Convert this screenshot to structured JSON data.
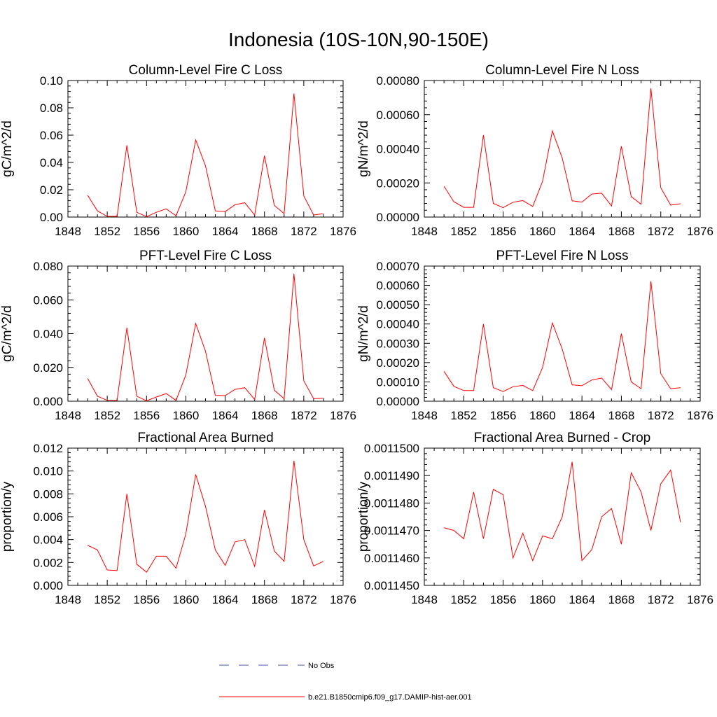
{
  "title": "Indonesia (10S-10N,90-150E)",
  "colors": {
    "model": "#ff0000",
    "obs": "#4a52a8",
    "axis": "#000000"
  },
  "legend": {
    "obs_label": "No Obs",
    "model_label": "b.e21.B1850cmip6.f09_g17.DAMIP-hist-aer.001"
  },
  "chart_data": [
    {
      "type": "line",
      "title": "Column-Level Fire C Loss",
      "ylabel": "gC/m^2/d",
      "xlim": [
        1848,
        1876
      ],
      "xticks": [
        "1848",
        "1852",
        "1856",
        "1860",
        "1864",
        "1868",
        "1872",
        "1876"
      ],
      "ylim": [
        0,
        0.1
      ],
      "yticks": [
        "0.00",
        "0.02",
        "0.04",
        "0.06",
        "0.08",
        "0.10"
      ],
      "x": [
        1850,
        1851,
        1852,
        1853,
        1854,
        1855,
        1856,
        1857,
        1858,
        1859,
        1860,
        1861,
        1862,
        1863,
        1864,
        1865,
        1866,
        1867,
        1868,
        1869,
        1870,
        1871,
        1872,
        1873,
        1874
      ],
      "series": [
        {
          "values": [
            0.016,
            0.0045,
            0.0005,
            0.0005,
            0.0525,
            0.0035,
            0.0003,
            0.0035,
            0.006,
            0.001,
            0.0185,
            0.0565,
            0.0375,
            0.0045,
            0.004,
            0.009,
            0.0105,
            0.0015,
            0.045,
            0.0085,
            0.0025,
            0.0905,
            0.0155,
            0.0015,
            0.0025
          ]
        }
      ]
    },
    {
      "type": "line",
      "title": "Column-Level Fire N Loss",
      "ylabel": "gN/m^2/d",
      "xlim": [
        1848,
        1876
      ],
      "xticks": [
        "1848",
        "1852",
        "1856",
        "1860",
        "1864",
        "1868",
        "1872",
        "1876"
      ],
      "ylim": [
        0,
        0.0008
      ],
      "yticks": [
        "0.00000",
        "0.00020",
        "0.00040",
        "0.00060",
        "0.00080"
      ],
      "x": [
        1850,
        1851,
        1852,
        1853,
        1854,
        1855,
        1856,
        1857,
        1858,
        1859,
        1860,
        1861,
        1862,
        1863,
        1864,
        1865,
        1866,
        1867,
        1868,
        1869,
        1870,
        1871,
        1872,
        1873,
        1874
      ],
      "series": [
        {
          "values": [
            0.00018,
            9e-05,
            5.7e-05,
            5.7e-05,
            0.00048,
            8e-05,
            5.5e-05,
            8.7e-05,
            9.7e-05,
            6.2e-05,
            0.00021,
            0.000505,
            0.000345,
            9.5e-05,
            8.8e-05,
            0.000135,
            0.00014,
            6.5e-05,
            0.000415,
            0.00012,
            7.5e-05,
            0.000755,
            0.000172,
            7e-05,
            7.8e-05
          ]
        }
      ]
    },
    {
      "type": "line",
      "title": "PFT-Level Fire C Loss",
      "ylabel": "gC/m^2/d",
      "xlim": [
        1848,
        1876
      ],
      "xticks": [
        "1848",
        "1852",
        "1856",
        "1860",
        "1864",
        "1868",
        "1872",
        "1876"
      ],
      "ylim": [
        0,
        0.08
      ],
      "yticks": [
        "0.000",
        "0.020",
        "0.040",
        "0.060",
        "0.080"
      ],
      "x": [
        1850,
        1851,
        1852,
        1853,
        1854,
        1855,
        1856,
        1857,
        1858,
        1859,
        1860,
        1861,
        1862,
        1863,
        1864,
        1865,
        1866,
        1867,
        1868,
        1869,
        1870,
        1871,
        1872,
        1873,
        1874
      ],
      "series": [
        {
          "values": [
            0.0135,
            0.003,
            0.0005,
            0.0005,
            0.0435,
            0.003,
            0.0002,
            0.0025,
            0.0045,
            0.0005,
            0.0155,
            0.046,
            0.0295,
            0.0035,
            0.0033,
            0.007,
            0.008,
            0.001,
            0.0375,
            0.0065,
            0.0015,
            0.0755,
            0.012,
            0.0015,
            0.0018
          ]
        }
      ]
    },
    {
      "type": "line",
      "title": "PFT-Level Fire N Loss",
      "ylabel": "gN/m^2/d",
      "xlim": [
        1848,
        1876
      ],
      "xticks": [
        "1848",
        "1852",
        "1856",
        "1860",
        "1864",
        "1868",
        "1872",
        "1876"
      ],
      "ylim": [
        0,
        0.0007
      ],
      "yticks": [
        "0.00000",
        "0.00010",
        "0.00020",
        "0.00030",
        "0.00040",
        "0.00050",
        "0.00060",
        "0.00070"
      ],
      "x": [
        1850,
        1851,
        1852,
        1853,
        1854,
        1855,
        1856,
        1857,
        1858,
        1859,
        1860,
        1861,
        1862,
        1863,
        1864,
        1865,
        1866,
        1867,
        1868,
        1869,
        1870,
        1871,
        1872,
        1873,
        1874
      ],
      "series": [
        {
          "values": [
            0.000155,
            7.7e-05,
            5.5e-05,
            5.5e-05,
            0.0004,
            7e-05,
            5e-05,
            7.5e-05,
            8.2e-05,
            5.5e-05,
            0.000175,
            0.000405,
            0.00027,
            8.5e-05,
            8e-05,
            0.00011,
            0.00012,
            6e-05,
            0.00035,
            0.0001,
            6.5e-05,
            0.000622,
            0.000143,
            6.5e-05,
            7e-05
          ]
        }
      ]
    },
    {
      "type": "line",
      "title": "Fractional Area Burned",
      "ylabel": "proportion/y",
      "xlim": [
        1848,
        1876
      ],
      "xticks": [
        "1848",
        "1852",
        "1856",
        "1860",
        "1864",
        "1868",
        "1872",
        "1876"
      ],
      "ylim": [
        0,
        0.012
      ],
      "yticks": [
        "0.000",
        "0.002",
        "0.004",
        "0.006",
        "0.008",
        "0.010",
        "0.012"
      ],
      "x": [
        1850,
        1851,
        1852,
        1853,
        1854,
        1855,
        1856,
        1857,
        1858,
        1859,
        1860,
        1861,
        1862,
        1863,
        1864,
        1865,
        1866,
        1867,
        1868,
        1869,
        1870,
        1871,
        1872,
        1873,
        1874
      ],
      "series": [
        {
          "values": [
            0.0035,
            0.0031,
            0.00135,
            0.0013,
            0.008,
            0.00185,
            0.00115,
            0.00255,
            0.00255,
            0.0015,
            0.0045,
            0.0097,
            0.0069,
            0.0031,
            0.00175,
            0.0038,
            0.004,
            0.00165,
            0.0066,
            0.003,
            0.0021,
            0.0109,
            0.004,
            0.0017,
            0.0021
          ]
        }
      ]
    },
    {
      "type": "line",
      "title": "Fractional Area Burned - Crop",
      "ylabel": "proportion/y",
      "xlim": [
        1848,
        1876
      ],
      "xticks": [
        "1848",
        "1852",
        "1856",
        "1860",
        "1864",
        "1868",
        "1872",
        "1876"
      ],
      "ylim": [
        0.001145,
        0.00115
      ],
      "yticks": [
        "0.0011450",
        "0.0011460",
        "0.0011470",
        "0.0011480",
        "0.0011490",
        "0.0011500"
      ],
      "x": [
        1850,
        1851,
        1852,
        1853,
        1854,
        1855,
        1856,
        1857,
        1858,
        1859,
        1860,
        1861,
        1862,
        1863,
        1864,
        1865,
        1866,
        1867,
        1868,
        1869,
        1870,
        1871,
        1872,
        1873,
        1874
      ],
      "series": [
        {
          "values": [
            0.0011471,
            0.001147,
            0.0011467,
            0.0011484,
            0.0011467,
            0.0011485,
            0.0011483,
            0.001146,
            0.0011469,
            0.0011459,
            0.0011468,
            0.0011467,
            0.0011475,
            0.0011495,
            0.0011459,
            0.0011463,
            0.0011475,
            0.0011478,
            0.0011465,
            0.0011491,
            0.0011484,
            0.001147,
            0.0011487,
            0.0011492,
            0.0011473
          ]
        }
      ]
    }
  ]
}
